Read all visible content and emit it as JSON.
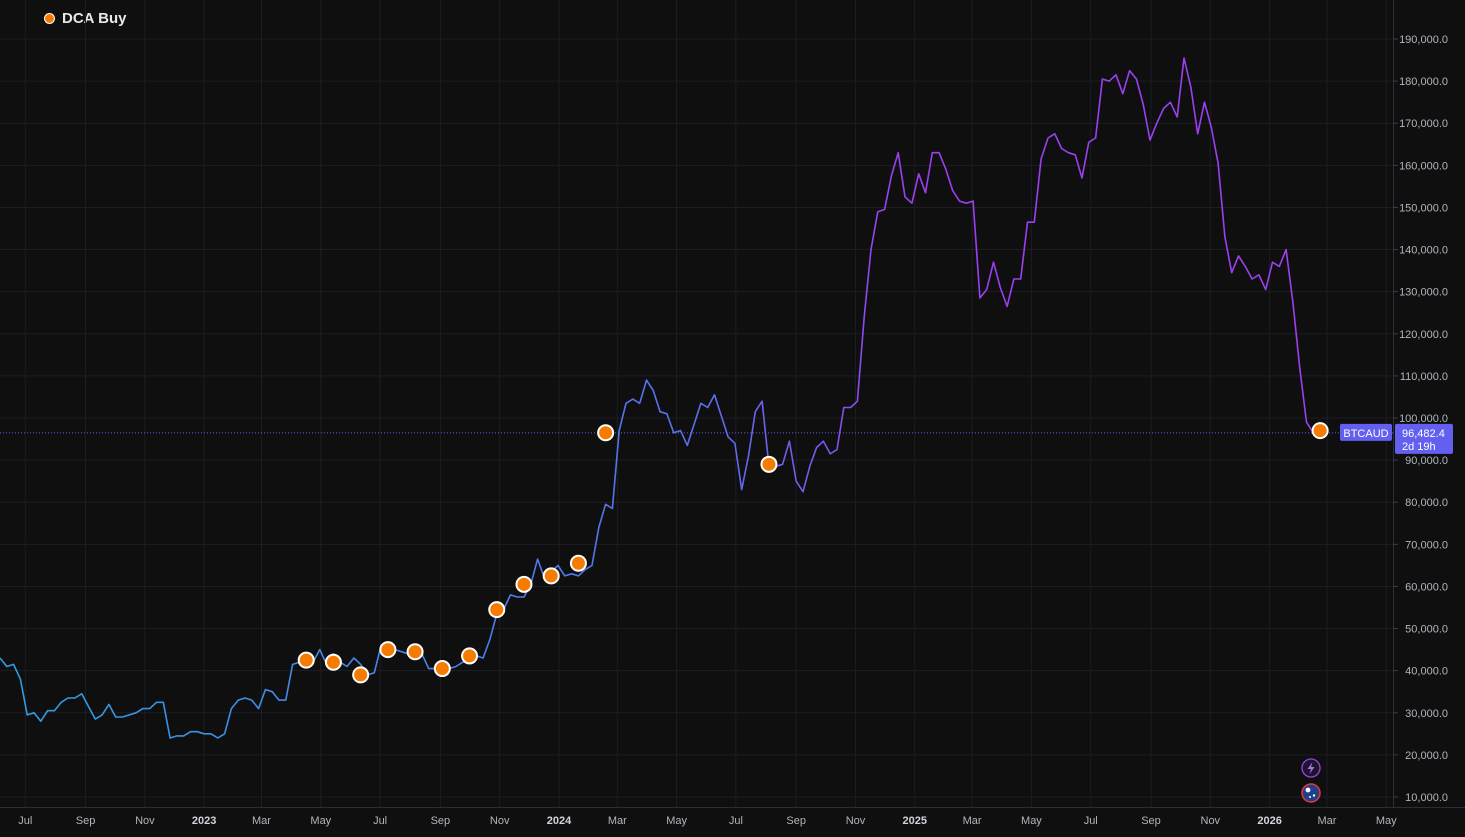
{
  "legend": {
    "label": "DCA Buy",
    "marker_color": "#f57c00"
  },
  "symbol_badge": {
    "symbol": "BTCAUD",
    "price": "96,482.4",
    "countdown": "2d 19h",
    "color": "#6360f0"
  },
  "chart_data": {
    "type": "line",
    "title": "",
    "xlabel": "",
    "ylabel": "",
    "x_range": [
      "2022-06-05",
      "2026-05-10"
    ],
    "ylim": [
      7000,
      197000
    ],
    "y_ticks": [
      10000,
      20000,
      30000,
      40000,
      50000,
      60000,
      70000,
      80000,
      90000,
      100000,
      110000,
      120000,
      130000,
      140000,
      150000,
      160000,
      170000,
      180000,
      190000
    ],
    "y_tick_labels": [
      "10,000.0",
      "20,000.0",
      "30,000.0",
      "40,000.0",
      "50,000.0",
      "60,000.0",
      "70,000.0",
      "80,000.0",
      "90,000.0",
      "100,000.0",
      "110,000.0",
      "120,000.0",
      "130,000.0",
      "140,000.0",
      "150,000.0",
      "160,000.0",
      "170,000.0",
      "180,000.0",
      "190,000.0"
    ],
    "x_ticks": [
      {
        "date": "2022-07-01",
        "label": "Jul",
        "year": false
      },
      {
        "date": "2022-09-01",
        "label": "Sep",
        "year": false
      },
      {
        "date": "2022-11-01",
        "label": "Nov",
        "year": false
      },
      {
        "date": "2023-01-01",
        "label": "2023",
        "year": true
      },
      {
        "date": "2023-03-01",
        "label": "Mar",
        "year": false
      },
      {
        "date": "2023-05-01",
        "label": "May",
        "year": false
      },
      {
        "date": "2023-07-01",
        "label": "Jul",
        "year": false
      },
      {
        "date": "2023-09-01",
        "label": "Sep",
        "year": false
      },
      {
        "date": "2023-11-01",
        "label": "Nov",
        "year": false
      },
      {
        "date": "2024-01-01",
        "label": "2024",
        "year": true
      },
      {
        "date": "2024-03-01",
        "label": "Mar",
        "year": false
      },
      {
        "date": "2024-05-01",
        "label": "May",
        "year": false
      },
      {
        "date": "2024-07-01",
        "label": "Jul",
        "year": false
      },
      {
        "date": "2024-09-01",
        "label": "Sep",
        "year": false
      },
      {
        "date": "2024-11-01",
        "label": "Nov",
        "year": false
      },
      {
        "date": "2025-01-01",
        "label": "2025",
        "year": true
      },
      {
        "date": "2025-03-01",
        "label": "Mar",
        "year": false
      },
      {
        "date": "2025-05-01",
        "label": "May",
        "year": false
      },
      {
        "date": "2025-07-01",
        "label": "Jul",
        "year": false
      },
      {
        "date": "2025-09-01",
        "label": "Sep",
        "year": false
      },
      {
        "date": "2025-11-01",
        "label": "Nov",
        "year": false
      },
      {
        "date": "2026-01-01",
        "label": "2026",
        "year": true
      },
      {
        "date": "2026-03-01",
        "label": "Mar",
        "year": false
      },
      {
        "date": "2026-05-01",
        "label": "May",
        "year": false
      }
    ],
    "gradient": [
      "#2f9ee0",
      "#5b6ef0",
      "#9b3ff0"
    ],
    "current_price": 96482.4,
    "series": [
      {
        "points": [
          [
            "2022-06-05",
            43000
          ],
          [
            "2022-06-12",
            41000
          ],
          [
            "2022-06-19",
            41500
          ],
          [
            "2022-06-26",
            38000
          ],
          [
            "2022-07-03",
            29500
          ],
          [
            "2022-07-10",
            30000
          ],
          [
            "2022-07-17",
            28000
          ],
          [
            "2022-07-24",
            30500
          ],
          [
            "2022-07-31",
            30500
          ],
          [
            "2022-08-07",
            32500
          ],
          [
            "2022-08-14",
            33500
          ],
          [
            "2022-08-21",
            33500
          ],
          [
            "2022-08-28",
            34500
          ],
          [
            "2022-09-04",
            31500
          ],
          [
            "2022-09-11",
            28500
          ],
          [
            "2022-09-18",
            29500
          ],
          [
            "2022-09-25",
            32000
          ],
          [
            "2022-10-02",
            29000
          ],
          [
            "2022-10-09",
            29000
          ],
          [
            "2022-10-16",
            29500
          ],
          [
            "2022-10-23",
            30000
          ],
          [
            "2022-10-30",
            31000
          ],
          [
            "2022-11-06",
            31000
          ],
          [
            "2022-11-13",
            32500
          ],
          [
            "2022-11-20",
            32500
          ],
          [
            "2022-11-27",
            24000
          ],
          [
            "2022-12-04",
            24500
          ],
          [
            "2022-12-11",
            24500
          ],
          [
            "2022-12-18",
            25500
          ],
          [
            "2022-12-25",
            25500
          ],
          [
            "2023-01-01",
            25000
          ],
          [
            "2023-01-08",
            25000
          ],
          [
            "2023-01-15",
            24000
          ],
          [
            "2023-01-22",
            25000
          ],
          [
            "2023-01-29",
            31000
          ],
          [
            "2023-02-05",
            33000
          ],
          [
            "2023-02-12",
            33500
          ],
          [
            "2023-02-19",
            33000
          ],
          [
            "2023-02-26",
            31000
          ],
          [
            "2023-03-05",
            35500
          ],
          [
            "2023-03-12",
            35000
          ],
          [
            "2023-03-19",
            33000
          ],
          [
            "2023-03-26",
            33000
          ],
          [
            "2023-04-02",
            41500
          ],
          [
            "2023-04-09",
            42000
          ],
          [
            "2023-04-16",
            42500
          ],
          [
            "2023-04-23",
            42000
          ],
          [
            "2023-04-30",
            45000
          ],
          [
            "2023-05-07",
            41500
          ],
          [
            "2023-05-14",
            44000
          ],
          [
            "2023-05-21",
            42000
          ],
          [
            "2023-05-28",
            41000
          ],
          [
            "2023-06-04",
            43000
          ],
          [
            "2023-06-11",
            41500
          ],
          [
            "2023-06-18",
            39000
          ],
          [
            "2023-06-25",
            39500
          ],
          [
            "2023-07-02",
            46000
          ],
          [
            "2023-07-09",
            45000
          ],
          [
            "2023-07-16",
            45000
          ],
          [
            "2023-07-23",
            44500
          ],
          [
            "2023-07-30",
            44000
          ],
          [
            "2023-08-06",
            44000
          ],
          [
            "2023-08-13",
            44000
          ],
          [
            "2023-08-20",
            40500
          ],
          [
            "2023-08-27",
            40500
          ],
          [
            "2023-09-03",
            40500
          ],
          [
            "2023-09-10",
            40500
          ],
          [
            "2023-09-17",
            41000
          ],
          [
            "2023-09-24",
            42000
          ],
          [
            "2023-10-01",
            42500
          ],
          [
            "2023-10-08",
            43500
          ],
          [
            "2023-10-15",
            43000
          ],
          [
            "2023-10-22",
            47500
          ],
          [
            "2023-10-29",
            53500
          ],
          [
            "2023-11-05",
            54500
          ],
          [
            "2023-11-12",
            58000
          ],
          [
            "2023-11-19",
            57500
          ],
          [
            "2023-11-26",
            57500
          ],
          [
            "2023-12-03",
            60500
          ],
          [
            "2023-12-10",
            66500
          ],
          [
            "2023-12-17",
            62000
          ],
          [
            "2023-12-24",
            63500
          ],
          [
            "2023-12-31",
            65000
          ],
          [
            "2024-01-07",
            62500
          ],
          [
            "2024-01-14",
            63000
          ],
          [
            "2024-01-21",
            62500
          ],
          [
            "2024-01-28",
            64000
          ],
          [
            "2024-02-04",
            65000
          ],
          [
            "2024-02-11",
            74000
          ],
          [
            "2024-02-18",
            79500
          ],
          [
            "2024-02-25",
            78500
          ],
          [
            "2024-03-03",
            97000
          ],
          [
            "2024-03-10",
            103500
          ],
          [
            "2024-03-17",
            104500
          ],
          [
            "2024-03-24",
            103500
          ],
          [
            "2024-03-31",
            109000
          ],
          [
            "2024-04-07",
            106500
          ],
          [
            "2024-04-14",
            101500
          ],
          [
            "2024-04-21",
            101000
          ],
          [
            "2024-04-28",
            96500
          ],
          [
            "2024-05-05",
            97000
          ],
          [
            "2024-05-12",
            93500
          ],
          [
            "2024-05-19",
            98500
          ],
          [
            "2024-05-26",
            103500
          ],
          [
            "2024-06-02",
            102500
          ],
          [
            "2024-06-09",
            105500
          ],
          [
            "2024-06-16",
            100500
          ],
          [
            "2024-06-23",
            95500
          ],
          [
            "2024-06-30",
            94000
          ],
          [
            "2024-07-07",
            83000
          ],
          [
            "2024-07-14",
            91000
          ],
          [
            "2024-07-21",
            101500
          ],
          [
            "2024-07-28",
            104000
          ],
          [
            "2024-08-04",
            88500
          ],
          [
            "2024-08-11",
            88500
          ],
          [
            "2024-08-18",
            89000
          ],
          [
            "2024-08-25",
            94500
          ],
          [
            "2024-09-01",
            85000
          ],
          [
            "2024-09-08",
            82500
          ],
          [
            "2024-09-15",
            88500
          ],
          [
            "2024-09-22",
            93000
          ],
          [
            "2024-09-29",
            94500
          ],
          [
            "2024-10-06",
            91500
          ],
          [
            "2024-10-13",
            92500
          ],
          [
            "2024-10-20",
            102500
          ],
          [
            "2024-10-27",
            102500
          ],
          [
            "2024-11-03",
            104000
          ],
          [
            "2024-11-10",
            124000
          ],
          [
            "2024-11-17",
            140000
          ],
          [
            "2024-11-24",
            149000
          ],
          [
            "2024-12-01",
            149500
          ],
          [
            "2024-12-08",
            157500
          ],
          [
            "2024-12-15",
            163000
          ],
          [
            "2024-12-22",
            152500
          ],
          [
            "2024-12-29",
            151000
          ],
          [
            "2025-01-05",
            158000
          ],
          [
            "2025-01-12",
            153500
          ],
          [
            "2025-01-19",
            163000
          ],
          [
            "2025-01-26",
            163000
          ],
          [
            "2025-02-02",
            159000
          ],
          [
            "2025-02-09",
            154000
          ],
          [
            "2025-02-16",
            151500
          ],
          [
            "2025-02-23",
            151000
          ],
          [
            "2025-03-02",
            151500
          ],
          [
            "2025-03-09",
            128500
          ],
          [
            "2025-03-16",
            130500
          ],
          [
            "2025-03-23",
            137000
          ],
          [
            "2025-03-30",
            131000
          ],
          [
            "2025-04-06",
            126500
          ],
          [
            "2025-04-13",
            133000
          ],
          [
            "2025-04-20",
            133000
          ],
          [
            "2025-04-27",
            146500
          ],
          [
            "2025-05-04",
            146500
          ],
          [
            "2025-05-11",
            161500
          ],
          [
            "2025-05-18",
            166500
          ],
          [
            "2025-05-25",
            167500
          ],
          [
            "2025-06-01",
            164000
          ],
          [
            "2025-06-08",
            163000
          ],
          [
            "2025-06-15",
            162500
          ],
          [
            "2025-06-22",
            157000
          ],
          [
            "2025-06-29",
            165500
          ],
          [
            "2025-07-06",
            166500
          ],
          [
            "2025-07-13",
            180500
          ],
          [
            "2025-07-20",
            180000
          ],
          [
            "2025-07-27",
            181500
          ],
          [
            "2025-08-03",
            177000
          ],
          [
            "2025-08-10",
            182500
          ],
          [
            "2025-08-17",
            180500
          ],
          [
            "2025-08-24",
            174500
          ],
          [
            "2025-08-31",
            166000
          ],
          [
            "2025-09-07",
            170000
          ],
          [
            "2025-09-14",
            173500
          ],
          [
            "2025-09-21",
            175000
          ],
          [
            "2025-09-28",
            171500
          ],
          [
            "2025-10-05",
            185500
          ],
          [
            "2025-10-12",
            178500
          ],
          [
            "2025-10-19",
            167500
          ],
          [
            "2025-10-26",
            175000
          ],
          [
            "2025-11-02",
            169000
          ],
          [
            "2025-11-09",
            160500
          ],
          [
            "2025-11-16",
            143000
          ],
          [
            "2025-11-23",
            134500
          ],
          [
            "2025-11-30",
            138500
          ],
          [
            "2025-12-07",
            136000
          ],
          [
            "2025-12-14",
            133000
          ],
          [
            "2025-12-21",
            134000
          ],
          [
            "2025-12-28",
            130500
          ],
          [
            "2026-01-04",
            137000
          ],
          [
            "2026-01-11",
            136000
          ],
          [
            "2026-01-18",
            140000
          ],
          [
            "2026-01-25",
            127500
          ],
          [
            "2026-02-01",
            112000
          ],
          [
            "2026-02-08",
            99000
          ],
          [
            "2026-02-15",
            96482.4
          ]
        ]
      }
    ],
    "dca_buys": [
      [
        "2023-04-16",
        42500
      ],
      [
        "2023-05-14",
        42000
      ],
      [
        "2023-06-11",
        39000
      ],
      [
        "2023-07-09",
        45000
      ],
      [
        "2023-08-06",
        44500
      ],
      [
        "2023-09-03",
        40500
      ],
      [
        "2023-10-01",
        43500
      ],
      [
        "2023-10-29",
        54500
      ],
      [
        "2023-11-26",
        60500
      ],
      [
        "2023-12-24",
        62500
      ],
      [
        "2024-01-21",
        65500
      ],
      [
        "2024-02-18",
        96500
      ],
      [
        "2024-08-04",
        89000
      ],
      [
        "2026-02-22",
        97000
      ]
    ]
  }
}
